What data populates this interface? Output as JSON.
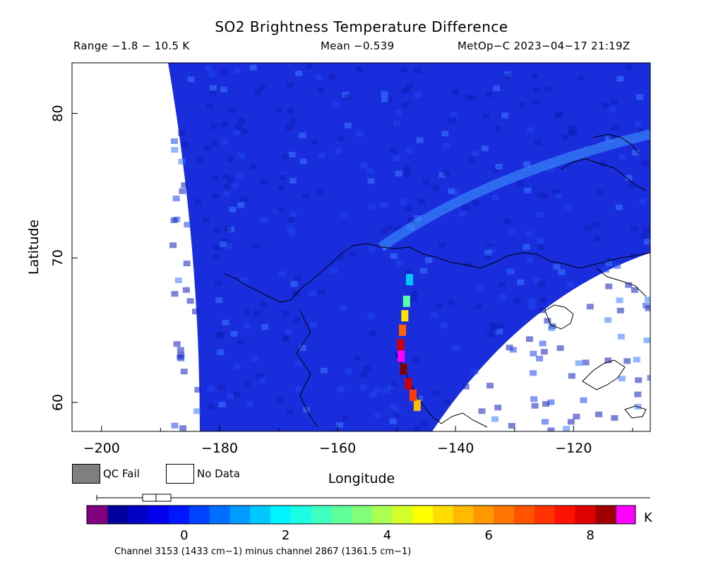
{
  "header": {
    "title": "SO2 Brightness Temperature Difference",
    "range_text": "Range −1.8 − 10.5 K",
    "mean_text": "Mean −0.539",
    "satellite_text": "MetOp−C 2023−04−17 21:19Z"
  },
  "legend": {
    "qc_fail_label": "QC Fail",
    "no_data_label": "No Data",
    "qc_fail_color": "#7f7f7f",
    "no_data_color": "#ffffff"
  },
  "colorbar": {
    "unit": "K",
    "ticks": [
      "0",
      "2",
      "4",
      "6",
      "8"
    ],
    "tick_values": [
      0,
      2,
      4,
      6,
      8
    ],
    "vmin": -1.5,
    "vmax": 8.5,
    "under_color": "#800080",
    "over_color": "#ff00ff",
    "box_plot": {
      "min": -1.8,
      "q1": -1.1,
      "median": -0.9,
      "q3": -0.6,
      "max": 10.5
    }
  },
  "footer": {
    "note": "Channel 3153 (1433 cm−1) minus channel 2867 (1361.5 cm−1)"
  },
  "chart_data": {
    "type": "heatmap",
    "title": "SO2 Brightness Temperature Difference",
    "xlabel": "Longitude",
    "ylabel": "Latitude",
    "xlim": [
      -205,
      -107
    ],
    "ylim": [
      58,
      83.5
    ],
    "x_ticks": [
      -200,
      -180,
      -160,
      -140,
      -120
    ],
    "x_tick_labels": [
      "−200",
      "−180",
      "−160",
      "−140",
      "−120"
    ],
    "y_ticks": [
      60,
      70,
      80
    ],
    "y_tick_labels": [
      "60",
      "70",
      "80"
    ],
    "range": [
      -1.8,
      10.5
    ],
    "mean": -0.539,
    "units": "K",
    "so2_plume_track": [
      {
        "lon": -146.5,
        "lat": 59.8,
        "value": 5.5
      },
      {
        "lon": -147.2,
        "lat": 60.5,
        "value": 7.0
      },
      {
        "lon": -148.0,
        "lat": 61.3,
        "value": 8.0
      },
      {
        "lon": -148.8,
        "lat": 62.3,
        "value": 8.5
      },
      {
        "lon": -149.2,
        "lat": 63.2,
        "value": 9.0
      },
      {
        "lon": -149.3,
        "lat": 64.0,
        "value": 8.0
      },
      {
        "lon": -149.0,
        "lat": 65.0,
        "value": 6.5
      },
      {
        "lon": -148.6,
        "lat": 66.0,
        "value": 5.0
      },
      {
        "lon": -148.3,
        "lat": 67.0,
        "value": 3.0
      },
      {
        "lon": -147.8,
        "lat": 68.5,
        "value": 1.5
      }
    ]
  }
}
